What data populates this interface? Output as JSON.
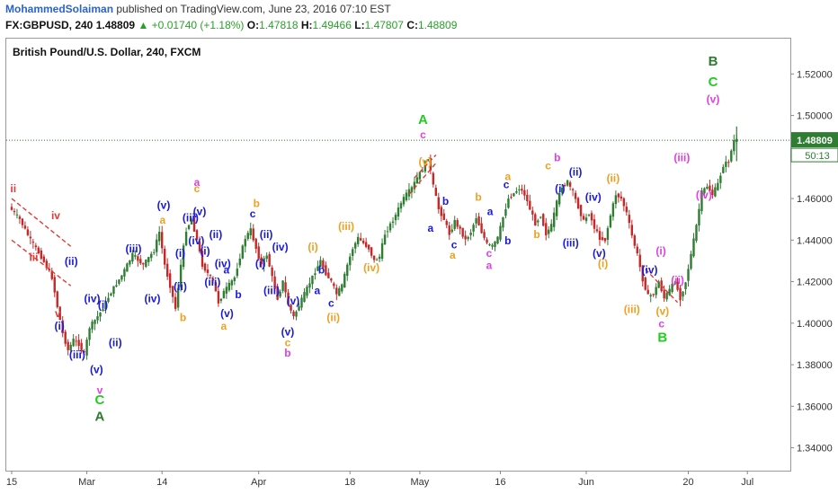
{
  "header": {
    "author": "MohammedSolaiman",
    "published_text": "published on TradingView.com, June 23, 2016 07:10 EST",
    "symbol": "FX:GBPUSD, 240",
    "last": "1.48809",
    "change": "+0.01740 (+1.18%)",
    "open_label": "O:",
    "open": "1.47818",
    "high_label": "H:",
    "high": "1.49466",
    "low_label": "L:",
    "low": "1.47807",
    "close_label": "C:",
    "close": "1.48809",
    "up_arrow": "▲"
  },
  "chart_title": "British Pound/U.S. Dollar, 240, FXCM",
  "colors": {
    "up": "#2e7d32",
    "down": "#c62828",
    "red": "#e53935",
    "blue": "#1a1adb",
    "orange": "#f0a020",
    "magenta": "#e040e0",
    "green": "#2e7d32",
    "lightgreen": "#22cc22",
    "price_tag": "#2e7d32"
  },
  "chart_data": {
    "type": "candlestick",
    "title": "British Pound/U.S. Dollar, 240, FXCM",
    "x_ticks": [
      {
        "label": "15",
        "x": 0
      },
      {
        "label": "Mar",
        "x": 14
      },
      {
        "label": "14",
        "x": 28
      },
      {
        "label": "Apr",
        "x": 46
      },
      {
        "label": "18",
        "x": 63
      },
      {
        "label": "May",
        "x": 76
      },
      {
        "label": "16",
        "x": 91
      },
      {
        "label": "Jun",
        "x": 107
      },
      {
        "label": "20",
        "x": 126
      },
      {
        "label": "Jul",
        "x": 137
      }
    ],
    "x_range": [
      -1,
      145
    ],
    "ylim": [
      1.329,
      1.537
    ],
    "y_ticks": [
      "1.34000",
      "1.36000",
      "1.38000",
      "1.40000",
      "1.42000",
      "1.44000",
      "1.46000",
      "1.48000",
      "1.50000",
      "1.52000"
    ],
    "last_price": "1.48809",
    "countdown": "50:13",
    "price_path": [
      [
        0,
        1.456
      ],
      [
        2,
        1.45
      ],
      [
        4,
        1.44
      ],
      [
        6,
        1.432
      ],
      [
        8,
        1.422
      ],
      [
        9,
        1.408
      ],
      [
        10,
        1.395
      ],
      [
        11,
        1.387
      ],
      [
        12,
        1.392
      ],
      [
        13,
        1.39
      ],
      [
        14,
        1.385
      ],
      [
        15,
        1.398
      ],
      [
        17,
        1.405
      ],
      [
        19,
        1.415
      ],
      [
        21,
        1.423
      ],
      [
        23,
        1.433
      ],
      [
        25,
        1.428
      ],
      [
        27,
        1.435
      ],
      [
        28,
        1.444
      ],
      [
        29,
        1.428
      ],
      [
        30,
        1.418
      ],
      [
        31,
        1.407
      ],
      [
        32,
        1.428
      ],
      [
        33,
        1.445
      ],
      [
        34,
        1.45
      ],
      [
        35,
        1.44
      ],
      [
        36,
        1.428
      ],
      [
        38,
        1.42
      ],
      [
        39,
        1.41
      ],
      [
        40,
        1.415
      ],
      [
        42,
        1.422
      ],
      [
        43,
        1.432
      ],
      [
        44,
        1.441
      ],
      [
        45,
        1.445
      ],
      [
        46,
        1.436
      ],
      [
        47,
        1.428
      ],
      [
        48,
        1.433
      ],
      [
        49,
        1.422
      ],
      [
        50,
        1.412
      ],
      [
        51,
        1.42
      ],
      [
        52,
        1.409
      ],
      [
        53,
        1.403
      ],
      [
        55,
        1.414
      ],
      [
        57,
        1.425
      ],
      [
        58,
        1.43
      ],
      [
        59,
        1.424
      ],
      [
        60,
        1.42
      ],
      [
        61,
        1.414
      ],
      [
        62,
        1.418
      ],
      [
        63,
        1.428
      ],
      [
        64,
        1.436
      ],
      [
        65,
        1.441
      ],
      [
        67,
        1.436
      ],
      [
        68,
        1.43
      ],
      [
        69,
        1.432
      ],
      [
        70,
        1.443
      ],
      [
        72,
        1.452
      ],
      [
        73,
        1.458
      ],
      [
        74,
        1.462
      ],
      [
        75,
        1.465
      ],
      [
        76,
        1.47
      ],
      [
        77,
        1.474
      ],
      [
        78,
        1.48
      ],
      [
        79,
        1.466
      ],
      [
        80,
        1.455
      ],
      [
        81,
        1.45
      ],
      [
        82,
        1.443
      ],
      [
        83,
        1.449
      ],
      [
        84,
        1.445
      ],
      [
        85,
        1.44
      ],
      [
        86,
        1.444
      ],
      [
        87,
        1.451
      ],
      [
        88,
        1.444
      ],
      [
        89,
        1.438
      ],
      [
        90,
        1.437
      ],
      [
        91,
        1.441
      ],
      [
        92,
        1.451
      ],
      [
        93,
        1.46
      ],
      [
        95,
        1.465
      ],
      [
        96,
        1.462
      ],
      [
        97,
        1.455
      ],
      [
        98,
        1.448
      ],
      [
        99,
        1.452
      ],
      [
        100,
        1.443
      ],
      [
        101,
        1.447
      ],
      [
        102,
        1.458
      ],
      [
        103,
        1.466
      ],
      [
        104,
        1.468
      ],
      [
        105,
        1.463
      ],
      [
        106,
        1.456
      ],
      [
        107,
        1.449
      ],
      [
        108,
        1.453
      ],
      [
        109,
        1.446
      ],
      [
        110,
        1.441
      ],
      [
        111,
        1.44
      ],
      [
        112,
        1.452
      ],
      [
        113,
        1.462
      ],
      [
        114,
        1.46
      ],
      [
        115,
        1.453
      ],
      [
        116,
        1.442
      ],
      [
        117,
        1.433
      ],
      [
        118,
        1.421
      ],
      [
        119,
        1.413
      ],
      [
        120,
        1.414
      ],
      [
        121,
        1.42
      ],
      [
        122,
        1.412
      ],
      [
        123,
        1.416
      ],
      [
        124,
        1.42
      ],
      [
        125,
        1.412
      ],
      [
        126,
        1.42
      ],
      [
        127,
        1.433
      ],
      [
        128,
        1.447
      ],
      [
        129,
        1.463
      ],
      [
        130,
        1.466
      ],
      [
        131,
        1.462
      ],
      [
        132,
        1.467
      ],
      [
        133,
        1.476
      ],
      [
        134,
        1.478
      ],
      [
        135,
        1.488
      ]
    ],
    "trendlines": [
      {
        "color": "#e53935",
        "points": [
          [
            0,
            1.46
          ],
          [
            11,
            1.437
          ]
        ]
      },
      {
        "color": "#e53935",
        "points": [
          [
            0,
            1.44
          ],
          [
            11,
            1.418
          ]
        ]
      },
      {
        "color": "#e53935",
        "points": [
          [
            74,
            1.462
          ],
          [
            79,
            1.477
          ]
        ]
      },
      {
        "color": "#e53935",
        "points": [
          [
            75,
            1.47
          ],
          [
            79,
            1.481
          ]
        ]
      },
      {
        "color": "#e53935",
        "points": [
          [
            118,
            1.426
          ],
          [
            124,
            1.41
          ]
        ]
      }
    ],
    "wave_labels": [
      {
        "text": "ii",
        "x": 0.3,
        "y": 1.463,
        "color": "red"
      },
      {
        "text": "iv",
        "x": 8.2,
        "y": 1.45,
        "color": "red"
      },
      {
        "text": "iii",
        "x": 4.1,
        "y": 1.43,
        "color": "red"
      },
      {
        "text": "v",
        "x": 8.6,
        "y": 1.403,
        "color": "red"
      },
      {
        "text": "(ii)",
        "x": 11.1,
        "y": 1.428,
        "color": "blue"
      },
      {
        "text": "(i)",
        "x": 8.9,
        "y": 1.397,
        "color": "blue"
      },
      {
        "text": "(iii)",
        "x": 12.2,
        "y": 1.383,
        "color": "blue"
      },
      {
        "text": "(iv)",
        "x": 15.0,
        "y": 1.41,
        "color": "blue"
      },
      {
        "text": "(i)",
        "x": 17.0,
        "y": 1.407,
        "color": "blue"
      },
      {
        "text": "(ii)",
        "x": 19.3,
        "y": 1.389,
        "color": "blue"
      },
      {
        "text": "(v)",
        "x": 15.8,
        "y": 1.376,
        "color": "blue"
      },
      {
        "text": "(iii)",
        "x": 22.7,
        "y": 1.434,
        "color": "blue"
      },
      {
        "text": "(iv)",
        "x": 26.2,
        "y": 1.41,
        "color": "blue"
      },
      {
        "text": "v",
        "x": 16.4,
        "y": 1.366,
        "color": "magenta"
      },
      {
        "text": "C",
        "x": 16.4,
        "y": 1.361,
        "color": "lightgreen"
      },
      {
        "text": "A",
        "x": 16.4,
        "y": 1.353,
        "color": "green"
      },
      {
        "text": "a",
        "x": 28.1,
        "y": 1.448,
        "color": "orange"
      },
      {
        "text": "(v)",
        "x": 28.3,
        "y": 1.455,
        "color": "blue"
      },
      {
        "text": "(i)",
        "x": 31.4,
        "y": 1.432,
        "color": "blue"
      },
      {
        "text": "(ii)",
        "x": 31.4,
        "y": 1.416,
        "color": "blue"
      },
      {
        "text": "b",
        "x": 31.9,
        "y": 1.401,
        "color": "orange"
      },
      {
        "text": "a",
        "x": 34.5,
        "y": 1.466,
        "color": "magenta"
      },
      {
        "text": "c",
        "x": 34.5,
        "y": 1.463,
        "color": "orange"
      },
      {
        "text": "(iii)",
        "x": 33.3,
        "y": 1.449,
        "color": "blue"
      },
      {
        "text": "(v)",
        "x": 35.0,
        "y": 1.452,
        "color": "blue"
      },
      {
        "text": "(iv)",
        "x": 34.4,
        "y": 1.438,
        "color": "blue"
      },
      {
        "text": "(i)",
        "x": 36.0,
        "y": 1.433,
        "color": "blue"
      },
      {
        "text": "(ii)",
        "x": 38.0,
        "y": 1.441,
        "color": "blue"
      },
      {
        "text": "(iii)",
        "x": 37.4,
        "y": 1.418,
        "color": "blue"
      },
      {
        "text": "(iv)",
        "x": 39.3,
        "y": 1.427,
        "color": "blue"
      },
      {
        "text": "a",
        "x": 40.0,
        "y": 1.424,
        "color": "blue"
      },
      {
        "text": "b",
        "x": 42.2,
        "y": 1.412,
        "color": "blue"
      },
      {
        "text": "(v)",
        "x": 40.1,
        "y": 1.403,
        "color": "blue"
      },
      {
        "text": "a",
        "x": 39.5,
        "y": 1.397,
        "color": "orange"
      },
      {
        "text": "b",
        "x": 45.6,
        "y": 1.456,
        "color": "orange"
      },
      {
        "text": "c",
        "x": 44.9,
        "y": 1.451,
        "color": "blue"
      },
      {
        "text": "(ii)",
        "x": 47.4,
        "y": 1.441,
        "color": "blue"
      },
      {
        "text": "(iv)",
        "x": 50.0,
        "y": 1.435,
        "color": "blue"
      },
      {
        "text": "(i)",
        "x": 46.3,
        "y": 1.427,
        "color": "blue"
      },
      {
        "text": "(iii)",
        "x": 48.4,
        "y": 1.414,
        "color": "blue"
      },
      {
        "text": "(v)",
        "x": 52.4,
        "y": 1.409,
        "color": "blue"
      },
      {
        "text": "(v)",
        "x": 51.4,
        "y": 1.394,
        "color": "blue"
      },
      {
        "text": "c",
        "x": 51.4,
        "y": 1.389,
        "color": "orange"
      },
      {
        "text": "b",
        "x": 51.4,
        "y": 1.384,
        "color": "magenta"
      },
      {
        "text": "(i)",
        "x": 56.1,
        "y": 1.435,
        "color": "orange"
      },
      {
        "text": "b",
        "x": 57.7,
        "y": 1.424,
        "color": "blue"
      },
      {
        "text": "a",
        "x": 56.9,
        "y": 1.414,
        "color": "blue"
      },
      {
        "text": "c",
        "x": 59.5,
        "y": 1.408,
        "color": "blue"
      },
      {
        "text": "(ii)",
        "x": 59.9,
        "y": 1.401,
        "color": "orange"
      },
      {
        "text": "(iii)",
        "x": 62.3,
        "y": 1.445,
        "color": "orange"
      },
      {
        "text": "(iv)",
        "x": 67.0,
        "y": 1.425,
        "color": "orange"
      },
      {
        "text": "A",
        "x": 76.6,
        "y": 1.496,
        "color": "lightgreen"
      },
      {
        "text": "c",
        "x": 76.6,
        "y": 1.489,
        "color": "magenta"
      },
      {
        "text": "(v)",
        "x": 77.0,
        "y": 1.476,
        "color": "orange"
      },
      {
        "text": "b",
        "x": 80.8,
        "y": 1.457,
        "color": "blue"
      },
      {
        "text": "a",
        "x": 78.0,
        "y": 1.444,
        "color": "blue"
      },
      {
        "text": "c",
        "x": 82.4,
        "y": 1.436,
        "color": "blue"
      },
      {
        "text": "a",
        "x": 82.1,
        "y": 1.431,
        "color": "orange"
      },
      {
        "text": "b",
        "x": 86.9,
        "y": 1.459,
        "color": "orange"
      },
      {
        "text": "a",
        "x": 89.1,
        "y": 1.452,
        "color": "blue"
      },
      {
        "text": "c",
        "x": 88.9,
        "y": 1.432,
        "color": "magenta"
      },
      {
        "text": "a",
        "x": 88.9,
        "y": 1.426,
        "color": "magenta"
      },
      {
        "text": "a",
        "x": 92.4,
        "y": 1.469,
        "color": "orange"
      },
      {
        "text": "c",
        "x": 92.1,
        "y": 1.465,
        "color": "blue"
      },
      {
        "text": "b",
        "x": 92.4,
        "y": 1.438,
        "color": "blue"
      },
      {
        "text": "b",
        "x": 97.8,
        "y": 1.441,
        "color": "orange"
      },
      {
        "text": "b",
        "x": 101.6,
        "y": 1.478,
        "color": "magenta"
      },
      {
        "text": "c",
        "x": 99.9,
        "y": 1.474,
        "color": "orange"
      },
      {
        "text": "(ii)",
        "x": 105.0,
        "y": 1.471,
        "color": "blue"
      },
      {
        "text": "(i)",
        "x": 102.1,
        "y": 1.463,
        "color": "blue"
      },
      {
        "text": "(iv)",
        "x": 108.3,
        "y": 1.459,
        "color": "blue"
      },
      {
        "text": "(iii)",
        "x": 104.1,
        "y": 1.437,
        "color": "blue"
      },
      {
        "text": "(v)",
        "x": 109.4,
        "y": 1.432,
        "color": "blue"
      },
      {
        "text": "(ii)",
        "x": 112.0,
        "y": 1.468,
        "color": "orange"
      },
      {
        "text": "(i)",
        "x": 110.1,
        "y": 1.427,
        "color": "orange"
      },
      {
        "text": "(iii)",
        "x": 115.5,
        "y": 1.405,
        "color": "orange"
      },
      {
        "text": "(i)",
        "x": 120.9,
        "y": 1.433,
        "color": "magenta"
      },
      {
        "text": "(iv)",
        "x": 118.8,
        "y": 1.424,
        "color": "blue"
      },
      {
        "text": "(ii)",
        "x": 124.0,
        "y": 1.419,
        "color": "magenta"
      },
      {
        "text": "(v)",
        "x": 121.2,
        "y": 1.404,
        "color": "orange"
      },
      {
        "text": "c",
        "x": 121.0,
        "y": 1.398,
        "color": "magenta"
      },
      {
        "text": "B",
        "x": 121.2,
        "y": 1.391,
        "color": "lightgreen"
      },
      {
        "text": "(iii)",
        "x": 124.8,
        "y": 1.478,
        "color": "magenta"
      },
      {
        "text": "(iv)",
        "x": 128.9,
        "y": 1.46,
        "color": "magenta"
      },
      {
        "text": "B",
        "x": 130.6,
        "y": 1.524,
        "color": "green"
      },
      {
        "text": "C",
        "x": 130.6,
        "y": 1.514,
        "color": "lightgreen"
      },
      {
        "text": "(v)",
        "x": 130.6,
        "y": 1.506,
        "color": "magenta"
      }
    ]
  }
}
